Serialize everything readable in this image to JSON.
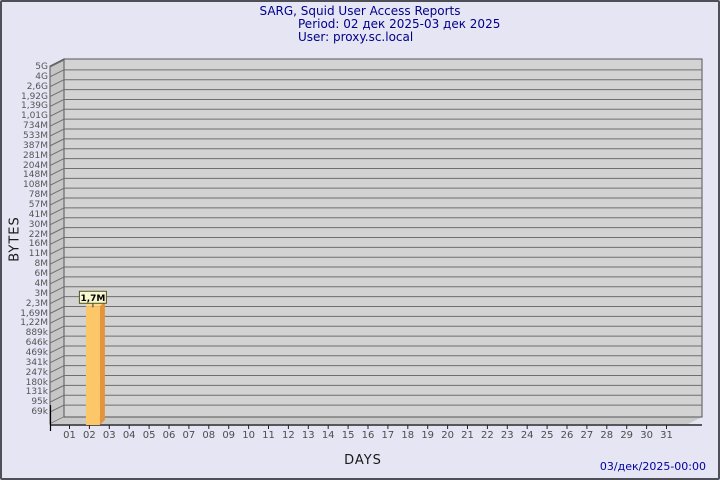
{
  "chart_data": {
    "type": "bar",
    "title": "SARG, Squid User Access Reports",
    "period_line": "Period: 02 дек 2025-03 дек 2025",
    "user_line": "User: proxy.sc.local",
    "xlabel": "DAYS",
    "ylabel": "BYTES",
    "y_scale": "log",
    "y_tick_labels_top_to_bottom": [
      "5G",
      "4G",
      "2,6G",
      "1,92G",
      "1,39G",
      "1,01G",
      "734M",
      "533M",
      "387M",
      "281M",
      "204M",
      "148M",
      "108M",
      "78M",
      "57M",
      "41M",
      "30M",
      "22M",
      "16M",
      "11M",
      "8M",
      "6M",
      "4M",
      "3M",
      "2,3M",
      "1,69M",
      "1,22M",
      "889k",
      "646k",
      "469k",
      "341k",
      "247k",
      "180k",
      "131k",
      "95k",
      "69k"
    ],
    "y_tick_values_top_to_bottom": [
      5000000000,
      4000000000,
      2600000000,
      1920000000,
      1390000000,
      1010000000,
      734000000,
      533000000,
      387000000,
      281000000,
      204000000,
      148000000,
      108000000,
      78000000,
      57000000,
      41000000,
      30000000,
      22000000,
      16000000,
      11000000,
      8000000,
      6000000,
      4000000,
      3000000,
      2300000,
      1690000,
      1220000,
      889000,
      646000,
      469000,
      341000,
      247000,
      180000,
      131000,
      95000,
      69000
    ],
    "x_categories": [
      "01",
      "02",
      "03",
      "04",
      "05",
      "06",
      "07",
      "08",
      "09",
      "10",
      "11",
      "12",
      "13",
      "14",
      "15",
      "16",
      "17",
      "18",
      "19",
      "20",
      "21",
      "22",
      "23",
      "24",
      "25",
      "26",
      "27",
      "28",
      "29",
      "30",
      "31"
    ],
    "bars": [
      {
        "day": "02",
        "value_bytes": 1700000,
        "label": "1,7M"
      }
    ],
    "legend": "none",
    "grid": "horizontal"
  },
  "footer": {
    "timestamp": "03/дек/2025-00:00"
  },
  "colors": {
    "page_bg": "#e5e5f4",
    "plot_bg": "#d3d3d3",
    "wall_bg": "#c6c6c6",
    "floor_bg": "#c9c9c9",
    "gridline": "#6e6e6e",
    "plot_border": "#555555",
    "axis": "#000000",
    "bar_face": "#fbc768",
    "bar_side": "#e2953c",
    "bar_top": "#fdd98f",
    "annotation_bg": "#f8f8d0",
    "annotation_border": "#54541c",
    "annotation_text": "#000000",
    "title_text": "#00008b",
    "timestamp_text": "#0000a0"
  }
}
